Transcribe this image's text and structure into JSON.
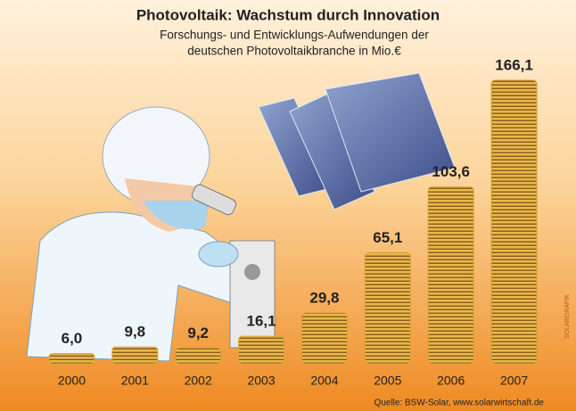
{
  "chart_data": {
    "type": "bar",
    "title": "Photovoltaik: Wachstum durch Innovation",
    "subtitle": [
      "Forschungs- und Entwicklungs-Aufwendungen der",
      "deutschen Photovoltaikbranche in Mio.€"
    ],
    "categories": [
      "2000",
      "2001",
      "2002",
      "2003",
      "2004",
      "2005",
      "2006",
      "2007"
    ],
    "values": [
      6.0,
      9.8,
      9.2,
      16.1,
      29.8,
      65.1,
      103.6,
      166.1
    ],
    "value_labels": [
      "6,0",
      "9,8",
      "9,2",
      "16,1",
      "29,8",
      "65,1",
      "103,6",
      "166,1"
    ],
    "color": "#d9a63a",
    "source": "Quelle: BSW-Solar, www.solarwirtschaft.de",
    "credit": "SOLARGRAFIK"
  }
}
